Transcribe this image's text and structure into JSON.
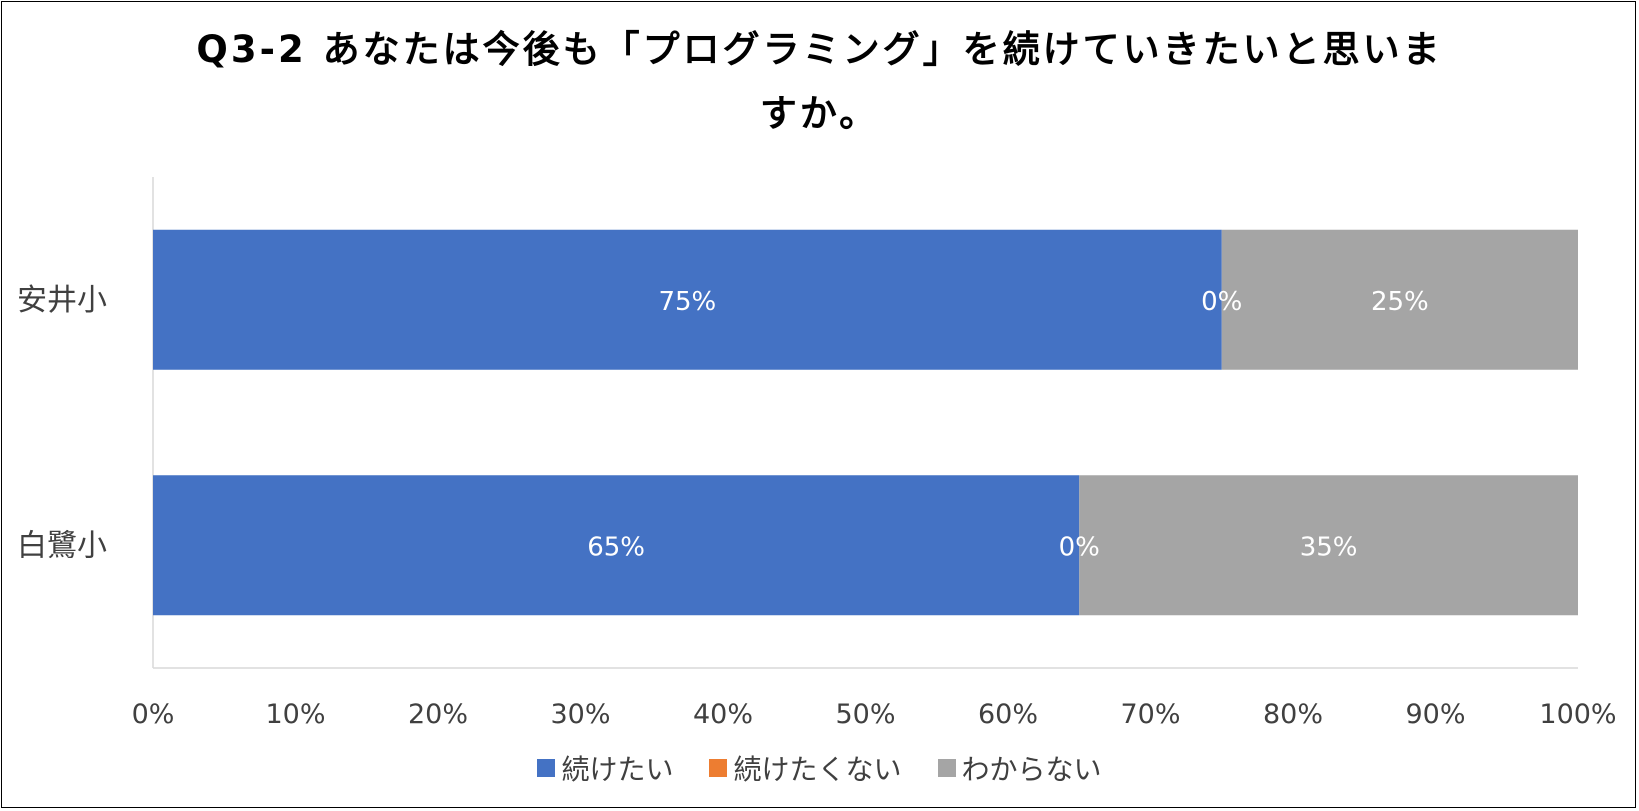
{
  "chart_data": {
    "type": "bar",
    "orientation": "horizontal",
    "stacked": "percent",
    "title_lines": [
      "Q3-2 あなたは今後も「プログラミング」を続けていきたいと思いま",
      "すか。"
    ],
    "categories": [
      "安井小",
      "白鷺小"
    ],
    "series": [
      {
        "name": "続けたい",
        "values": [
          75,
          65
        ],
        "labels": [
          "75%",
          "65%"
        ],
        "color": "#4472C4"
      },
      {
        "name": "続けたくない",
        "values": [
          0,
          0
        ],
        "labels": [
          "0%",
          "0%"
        ],
        "color": "#ED7D31"
      },
      {
        "name": "わからない",
        "values": [
          25,
          35
        ],
        "labels": [
          "25%",
          "35%"
        ],
        "color": "#A5A5A5"
      }
    ],
    "x_ticks": [
      "0%",
      "10%",
      "20%",
      "30%",
      "40%",
      "50%",
      "60%",
      "70%",
      "80%",
      "90%",
      "100%"
    ],
    "xlim": [
      0,
      100
    ],
    "legend_position": "bottom",
    "grid": false
  }
}
